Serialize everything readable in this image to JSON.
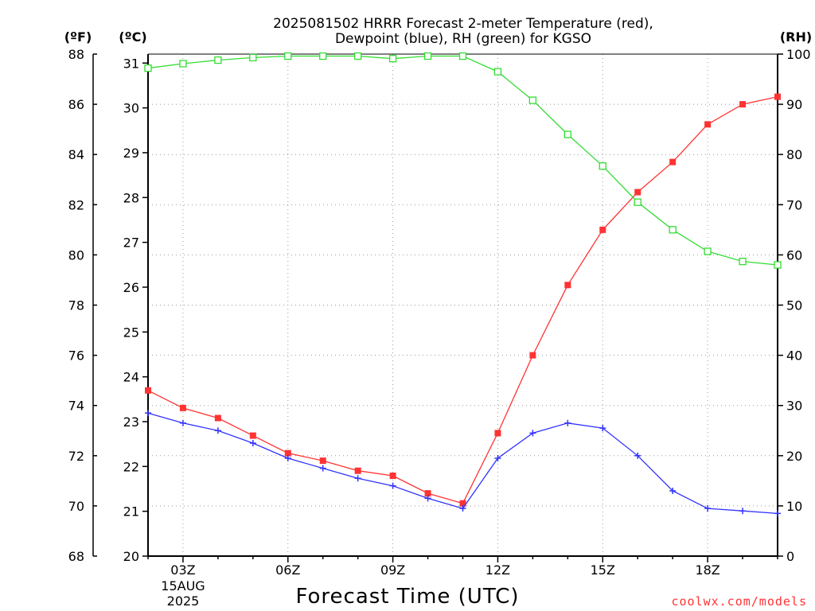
{
  "chart_data": {
    "type": "line",
    "title": "2025081502 HRRR Forecast 2-meter Temperature (red),",
    "subtitle": "Dewpoint (blue), RH (green) for KGSO",
    "xlabel": "Forecast Time (UTC)",
    "x_date_label": "15AUG",
    "x_year_label": "2025",
    "x": [
      "02Z",
      "03Z",
      "04Z",
      "05Z",
      "06Z",
      "07Z",
      "08Z",
      "09Z",
      "10Z",
      "11Z",
      "12Z",
      "13Z",
      "14Z",
      "15Z",
      "16Z",
      "17Z",
      "18Z",
      "19Z",
      "20Z"
    ],
    "x_tick_labels": [
      "03Z",
      "06Z",
      "09Z",
      "12Z",
      "15Z",
      "18Z"
    ],
    "left_axis_f": {
      "unit_label": "(ºF)",
      "range": [
        68,
        88
      ],
      "ticks": [
        "68",
        "70",
        "72",
        "74",
        "76",
        "78",
        "80",
        "82",
        "84",
        "86",
        "88"
      ]
    },
    "left_axis_c": {
      "unit_label": "(ºC)",
      "range": [
        20,
        31.2
      ],
      "ticks": [
        "20",
        "21",
        "22",
        "23",
        "24",
        "25",
        "26",
        "27",
        "28",
        "29",
        "30",
        "31"
      ]
    },
    "right_axis_rh": {
      "unit_label": "(RH)",
      "range": [
        0,
        100
      ],
      "ticks": [
        "0",
        "10",
        "20",
        "30",
        "40",
        "50",
        "60",
        "70",
        "80",
        "90",
        "100"
      ]
    },
    "series": [
      {
        "name": "Temperature",
        "axis": "F",
        "color": "#ff3333",
        "marker": "filled-square",
        "values": [
          74.6,
          73.9,
          73.5,
          72.8,
          72.1,
          71.8,
          71.4,
          71.2,
          70.5,
          70.1,
          72.9,
          76.0,
          78.8,
          81.0,
          82.5,
          83.7,
          85.2,
          86.0,
          86.3
        ]
      },
      {
        "name": "Dewpoint",
        "axis": "F",
        "color": "#3333ff",
        "marker": "plus",
        "values": [
          73.7,
          73.3,
          73.0,
          72.5,
          71.9,
          71.5,
          71.1,
          70.8,
          70.3,
          69.9,
          71.9,
          72.9,
          73.3,
          73.1,
          72.0,
          70.6,
          69.9,
          69.8,
          69.7
        ]
      },
      {
        "name": "RH",
        "axis": "RH",
        "color": "#33dd33",
        "marker": "open-square",
        "values": [
          97.2,
          98.1,
          98.8,
          99.3,
          99.6,
          99.6,
          99.6,
          99.1,
          99.6,
          99.6,
          96.5,
          90.8,
          84.0,
          77.7,
          70.5,
          65.0,
          60.7,
          58.7,
          58.0
        ]
      }
    ],
    "grid": true
  },
  "credit": "coolwx.com/models"
}
